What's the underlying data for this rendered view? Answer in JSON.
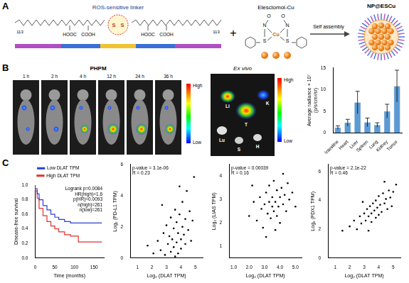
{
  "letters": [
    "A",
    "B",
    "C"
  ],
  "panel_a": {
    "linker_label": "ROS-sensitive linker",
    "repeat_unit": "113",
    "acid_left": "HOOC",
    "acid_right": "COOH",
    "disulfide": "S",
    "plus": "+",
    "drug_label": "Elesclomol-Cu",
    "drug_atoms": [
      "N",
      "S",
      "Cu",
      "O"
    ],
    "arrow_label": "Self assembly",
    "product_label": "NP@ESCu"
  },
  "panel_b": {
    "imaging": {
      "title": "PHPM",
      "times": [
        "1 h",
        "2 h",
        "4 h",
        "12 h",
        "24 h",
        "36 h"
      ]
    },
    "colorbar": {
      "high": "High",
      "low": "Low"
    },
    "ex_vivo": {
      "title": "Ex vivo",
      "organs": [
        "Li",
        "T",
        "K",
        "H",
        "S",
        "Lu"
      ]
    }
  },
  "chart_data": [
    {
      "type": "bar",
      "y_label": "Average radiance × 10⁷ (p/s/cm²/sr)",
      "categories": [
        "Intestine",
        "Heart",
        "Liver",
        "Spleen",
        "Lung",
        "Kidney",
        "Tumor"
      ],
      "values": [
        1.2,
        2.3,
        7.0,
        2.4,
        1.8,
        5.0,
        10.8
      ],
      "errors": [
        0.4,
        0.8,
        2.6,
        1.0,
        0.5,
        1.6,
        3.7
      ],
      "color": "#5b9bd5",
      "ylim": [
        0,
        15
      ],
      "yticks": [
        0,
        5,
        10,
        15
      ],
      "grid": false
    },
    {
      "type": "line",
      "x_label": "Time (months)",
      "y_label": "Disease-free survival",
      "series": [
        {
          "name": "Low DLAT TPM",
          "color": "#2b3fcf",
          "x": [
            0,
            5,
            10,
            20,
            30,
            40,
            50,
            60,
            75,
            90,
            110,
            170
          ],
          "values": [
            1.0,
            0.95,
            0.88,
            0.8,
            0.72,
            0.66,
            0.6,
            0.56,
            0.53,
            0.5,
            0.48,
            0.48
          ]
        },
        {
          "name": "High DLAT TPM",
          "color": "#e0302b",
          "x": [
            0,
            5,
            10,
            20,
            30,
            40,
            50,
            60,
            75,
            90,
            110,
            140,
            170
          ],
          "values": [
            1.0,
            0.92,
            0.82,
            0.68,
            0.58,
            0.5,
            0.44,
            0.4,
            0.36,
            0.32,
            0.3,
            0.22,
            0.22
          ]
        }
      ],
      "xlim": [
        0,
        175
      ],
      "xticks": [
        0,
        50,
        100,
        150
      ],
      "ylim": [
        0,
        1
      ],
      "yticks": [
        {
          "value": 0,
          "label": "0.0"
        },
        {
          "value": 0.2,
          "label": "0.2"
        },
        {
          "value": 0.4,
          "label": "0.4"
        },
        {
          "value": 0.6,
          "label": "0.6"
        },
        {
          "value": 0.8,
          "label": "0.8"
        },
        {
          "value": 1,
          "label": "1.0"
        }
      ],
      "annotations": [
        "Logrank p=0.0084",
        "HR(high)=1.6",
        "p(HR)=0.0093",
        "n(high)=261",
        "n(low)=261"
      ],
      "legend": "top",
      "line_style": "step",
      "grid": false
    },
    {
      "type": "scatter",
      "x_label": "Log₂ (DLAT TPM)",
      "y_label": "Log₂ (PD-L1 TPM)",
      "x": [
        2.1,
        2.4,
        2.6,
        2.8,
        2.9,
        3.0,
        3.1,
        3.2,
        3.3,
        3.3,
        3.4,
        3.5,
        3.5,
        3.6,
        3.7,
        3.7,
        3.8,
        3.8,
        3.9,
        4.0,
        4.0,
        4.1,
        4.1,
        4.2,
        4.3,
        4.3,
        4.4,
        4.5,
        4.6,
        4.7,
        4.8,
        4.9,
        3.6,
        2.7,
        1.7,
        3.9
      ],
      "values": [
        0.3,
        1.1,
        0.5,
        1.6,
        0.2,
        2.1,
        0.9,
        1.4,
        0.4,
        2.6,
        1.2,
        0.7,
        1.9,
        3.1,
        1.0,
        2.3,
        0.3,
        1.6,
        2.8,
        1.2,
        0.6,
        2.0,
        3.6,
        1.5,
        0.9,
        2.5,
        4.3,
        1.8,
        3.0,
        1.1,
        2.4,
        5.2,
        0.1,
        3.4,
        0.8,
        4.6
      ],
      "color": "#000000",
      "marker": "circle",
      "xlim": [
        0.5,
        5.5
      ],
      "xticks": [
        1,
        2,
        3,
        4,
        5
      ],
      "ylim": [
        0,
        6
      ],
      "yticks": [
        0,
        2,
        4,
        6
      ],
      "annotations": [
        "p-value = 3.1e-06",
        "R = 0.23"
      ],
      "grid": false
    },
    {
      "type": "scatter",
      "x_label": "Log₂ (DLAT TPM)",
      "y_label": "Log₂ (LIAS TPM)",
      "x": [
        2.0,
        2.3,
        2.5,
        2.7,
        2.8,
        2.9,
        3.0,
        3.1,
        3.2,
        3.3,
        3.3,
        3.4,
        3.5,
        3.5,
        3.6,
        3.6,
        3.7,
        3.8,
        3.8,
        3.9,
        4.0,
        4.0,
        4.1,
        4.2,
        4.3,
        4.4,
        4.5,
        4.6,
        4.8,
        5.0,
        3.1,
        4.2,
        2.2,
        3.7
      ],
      "values": [
        2.3,
        2.9,
        2.1,
        3.1,
        2.6,
        1.8,
        2.8,
        3.3,
        2.4,
        2.9,
        3.6,
        2.2,
        2.7,
        3.1,
        2.5,
        3.8,
        2.9,
        2.3,
        3.4,
        2.7,
        3.1,
        2.0,
        3.5,
        2.8,
        3.2,
        2.5,
        3.7,
        3.0,
        3.3,
        2.7,
        1.4,
        4.1,
        3.6,
        1.7
      ],
      "color": "#000000",
      "marker": "circle",
      "xlim": [
        0.7,
        5.4
      ],
      "xticks": [
        {
          "value": 1,
          "label": "1.0"
        },
        {
          "value": 2,
          "label": "2.0"
        },
        {
          "value": 3,
          "label": "3.0"
        },
        {
          "value": 4,
          "label": "4.0"
        },
        {
          "value": 5,
          "label": "5.0"
        }
      ],
      "ylim": [
        0.5,
        4.5
      ],
      "yticks": [
        1,
        2,
        3,
        4
      ],
      "annotations": [
        "p-value = 0.00039",
        "R = 0.16"
      ],
      "grid": false
    },
    {
      "type": "scatter",
      "x_label": "Log₂ (DLAT TPM)",
      "y_label": "Log₂ (FDX1 TPM)",
      "x": [
        1.5,
        2.0,
        2.3,
        2.5,
        2.7,
        2.8,
        3.0,
        3.1,
        3.2,
        3.3,
        3.4,
        3.5,
        3.5,
        3.6,
        3.7,
        3.8,
        3.8,
        3.9,
        4.0,
        4.0,
        4.1,
        4.2,
        4.3,
        4.4,
        4.5,
        4.6,
        4.7,
        4.8,
        5.0,
        5.2,
        3.3,
        4.4,
        2.9,
        4.9
      ],
      "values": [
        1.9,
        2.2,
        2.6,
        2.0,
        2.9,
        2.4,
        3.1,
        2.6,
        3.4,
        2.9,
        3.6,
        3.1,
        2.5,
        3.8,
        3.3,
        2.8,
        4.0,
        3.5,
        3.0,
        4.3,
        3.7,
        3.2,
        4.5,
        3.8,
        4.1,
        3.4,
        4.7,
        4.2,
        4.6,
        5.1,
        1.9,
        5.3,
        3.9,
        3.6
      ],
      "color": "#000000",
      "marker": "circle",
      "xlim": [
        0.5,
        5.5
      ],
      "xticks": [
        1,
        2,
        3,
        4,
        5
      ],
      "ylim": [
        0,
        6.5
      ],
      "yticks": [
        0,
        2,
        4,
        6
      ],
      "annotations": [
        "p-value = 2.1e-22",
        "R = 0.46"
      ],
      "grid": false
    }
  ]
}
